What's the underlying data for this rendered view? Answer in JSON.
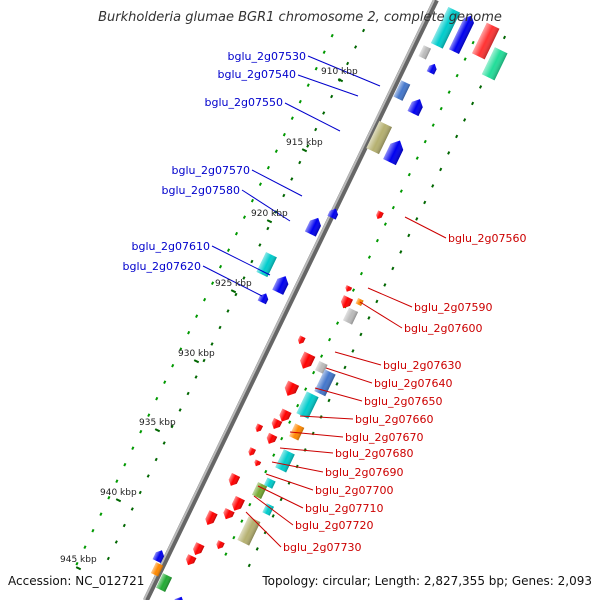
{
  "title": "Burkholderia glumae BGR1 chromosome 2, complete genome",
  "footer": {
    "accession": "Accession: NC_012721",
    "summary": "Topology: circular; Length: 2,827,355 bp; Genes: 2,093"
  },
  "colors": {
    "forward_label": "#0000cc",
    "reverse_label": "#cc0000",
    "backbone": "#888888",
    "tick_minor_fwd": "#009900",
    "tick_minor_rev": "#006600"
  },
  "scale": {
    "unit": "kbp",
    "ticks": [
      910,
      915,
      920,
      925,
      930,
      935,
      940,
      945
    ],
    "tick_labels": [
      "910 kbp",
      "915 kbp",
      "920 kbp",
      "925 kbp",
      "930 kbp",
      "935 kbp",
      "940 kbp",
      "945 kbp"
    ]
  },
  "labels": {
    "forward": [
      "bglu_2g07530",
      "bglu_2g07540",
      "bglu_2g07550",
      "bglu_2g07570",
      "bglu_2g07580",
      "bglu_2g07610",
      "bglu_2g07620"
    ],
    "reverse": [
      "bglu_2g07560",
      "bglu_2g07590",
      "bglu_2g07600",
      "bglu_2g07630",
      "bglu_2g07640",
      "bglu_2g07650",
      "bglu_2g07660",
      "bglu_2g07670",
      "bglu_2g07680",
      "bglu_2g07690",
      "bglu_2g07700",
      "bglu_2g07710",
      "bglu_2g07720",
      "bglu_2g07730"
    ]
  }
}
